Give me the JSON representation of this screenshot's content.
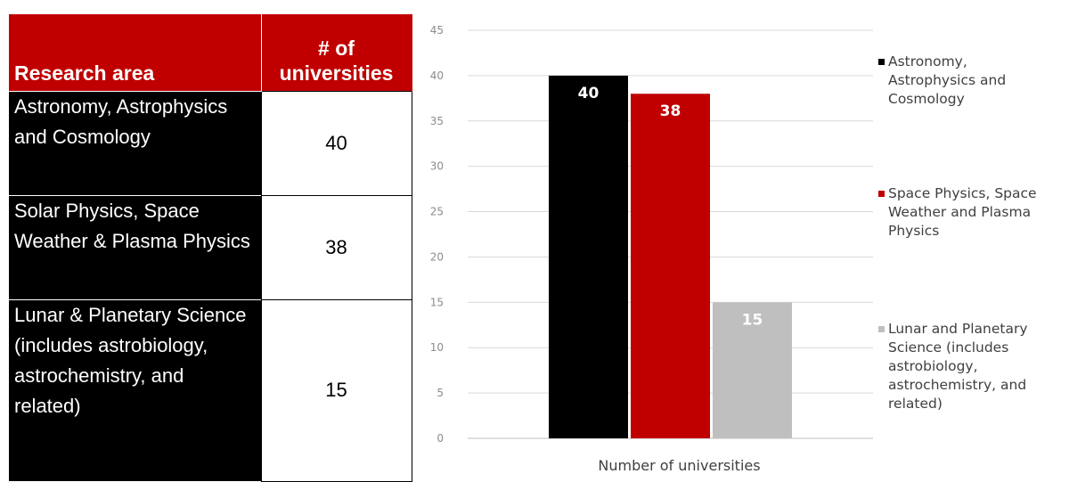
{
  "table": {
    "headers": [
      "Research area",
      "# of universities"
    ],
    "rows": [
      {
        "area": "Astronomy, Astrophysics and Cosmology",
        "count": "40"
      },
      {
        "area": "Solar Physics, Space Weather & Plasma Physics",
        "count": "38"
      },
      {
        "area": "Lunar & Planetary Science (includes astrobiology, astrochemistry, and related)",
        "count": "15"
      }
    ]
  },
  "colors": {
    "accent": "#c00000",
    "black": "#000000",
    "grey": "#bfbfbf"
  },
  "chart_data": {
    "type": "bar",
    "categories": [
      "Number of universities"
    ],
    "xlabel": "Number of universities",
    "ylabel": "",
    "ylim": [
      0,
      45
    ],
    "yticks": [
      0,
      5,
      10,
      15,
      20,
      25,
      30,
      35,
      40,
      45
    ],
    "grid": true,
    "legend_position": "right",
    "series": [
      {
        "name": "Astronomy, Astrophysics and Cosmology",
        "values": [
          40
        ],
        "color": "#000000",
        "label_color": "#ffffff"
      },
      {
        "name": "Space Physics, Space Weather and Plasma Physics",
        "values": [
          38
        ],
        "color": "#c00000",
        "label_color": "#ffffff"
      },
      {
        "name": "Lunar and Planetary Science (includes astrobiology, astrochemistry, and related)",
        "values": [
          15
        ],
        "color": "#bfbfbf",
        "label_color": "#ffffff"
      }
    ]
  }
}
